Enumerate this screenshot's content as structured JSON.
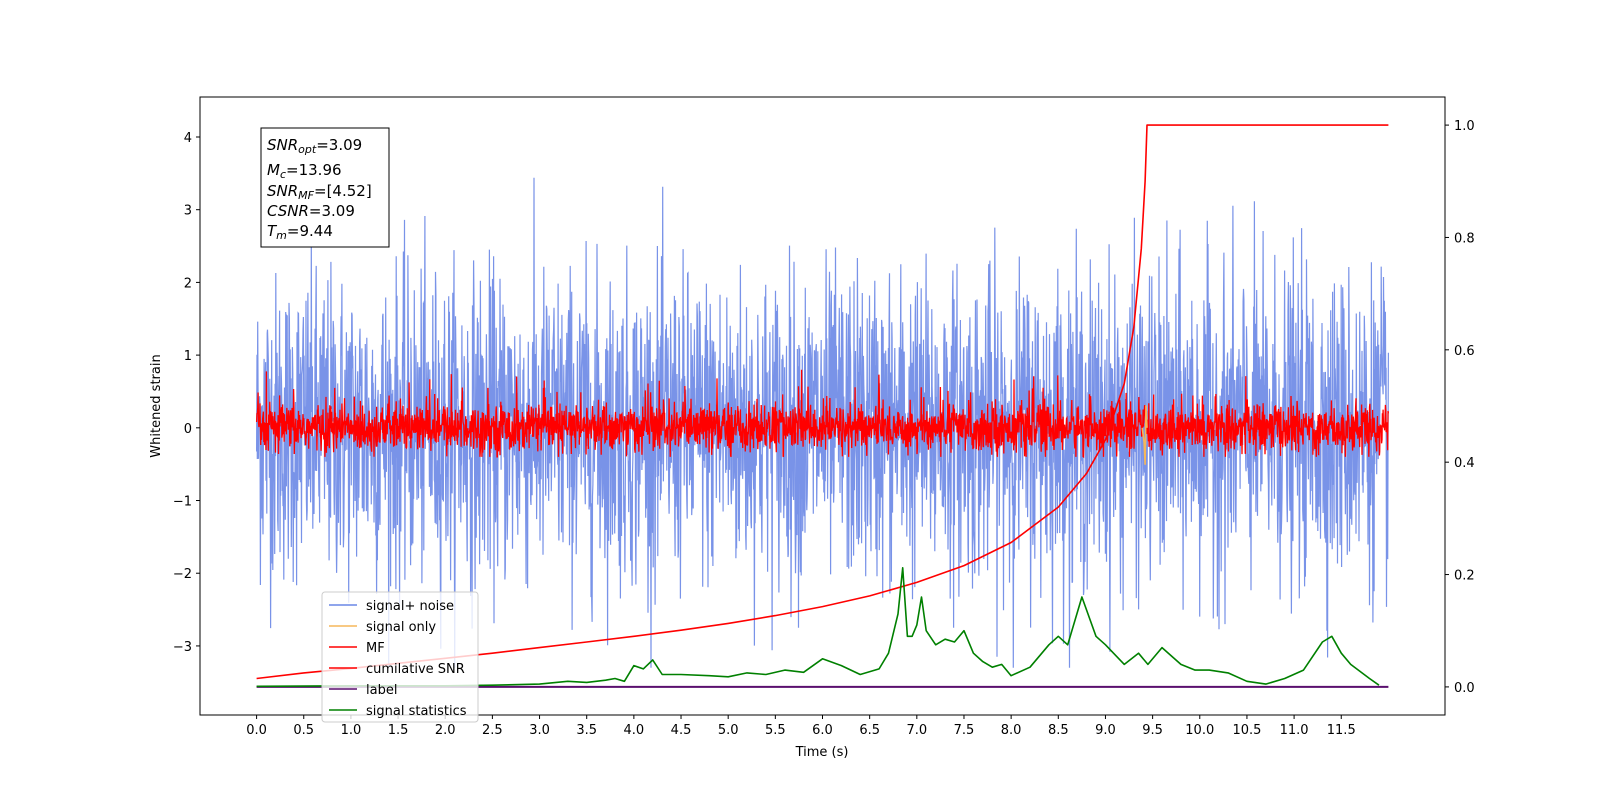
{
  "chart_data": {
    "type": "line",
    "xlabel": "Time (s)",
    "ylabel": "Whitened strain",
    "xlim": [
      -0.6,
      12.6
    ],
    "ylim": [
      -3.95,
      4.55
    ],
    "y2lim": [
      -0.05,
      1.05
    ],
    "x_ticks": [
      "0.0",
      "0.5",
      "1.0",
      "1.5",
      "2.0",
      "2.5",
      "3.0",
      "3.5",
      "4.0",
      "4.5",
      "5.0",
      "5.5",
      "6.0",
      "6.5",
      "7.0",
      "7.5",
      "8.0",
      "8.5",
      "9.0",
      "9.5",
      "10.0",
      "10.5",
      "11.0",
      "11.5"
    ],
    "y_ticks": [
      "−3",
      "−2",
      "−1",
      "0",
      "1",
      "2",
      "3",
      "4"
    ],
    "y2_ticks": [
      "0.0",
      "0.2",
      "0.4",
      "0.6",
      "0.8",
      "1.0"
    ],
    "annotation": {
      "snr_opt": {
        "sym": "SNR",
        "sub": "opt",
        "val": "=3.09"
      },
      "mc": {
        "sym": "M",
        "sub": "c",
        "val": "=13.96"
      },
      "snr_mf": {
        "sym": "SNR",
        "sub": "MF",
        "val": "=[4.52]"
      },
      "csnr": {
        "sym": "CSNR",
        "sub": "",
        "val": "=3.09"
      },
      "tm": {
        "sym": "T",
        "sub": "m",
        "val": "=9.44"
      }
    },
    "legend": {
      "placement": "lower-left",
      "entries": [
        {
          "label": "signal+ noise",
          "color": "#6a87e6"
        },
        {
          "label": "signal only",
          "color": "#f5b75a"
        },
        {
          "label": "MF",
          "color": "#ff0000"
        },
        {
          "label": "cumilative SNR",
          "color": "#ff0000"
        },
        {
          "label": "label",
          "color": "#5a0f6e"
        },
        {
          "label": "signal statistics",
          "color": "#008000"
        }
      ]
    },
    "series": [
      {
        "name": "signal+ noise",
        "color": "#6a87e6",
        "description": "whitened strain noise",
        "t_range": [
          0,
          12
        ],
        "amplitude_range": [
          -3.3,
          4.2
        ]
      },
      {
        "name": "MF",
        "color": "#ff0000",
        "t_range": [
          0,
          12
        ],
        "amplitude_range": [
          -0.4,
          1.0
        ]
      },
      {
        "name": "signal only",
        "color": "#f5b75a",
        "t": [
          9.39,
          9.41,
          9.42,
          9.43,
          9.44
        ],
        "y": [
          0,
          -0.2,
          -0.5,
          0.3,
          0
        ]
      },
      {
        "name": "cumilative SNR",
        "axis": "right",
        "color": "#ff0000",
        "t": [
          0.0,
          0.5,
          1.0,
          1.5,
          2.0,
          2.5,
          3.0,
          3.5,
          4.0,
          4.5,
          5.0,
          5.5,
          6.0,
          6.5,
          7.0,
          7.5,
          8.0,
          8.5,
          8.8,
          9.0,
          9.2,
          9.3,
          9.38,
          9.42,
          9.44,
          12.0
        ],
        "values": [
          0.015,
          0.025,
          0.033,
          0.042,
          0.051,
          0.06,
          0.07,
          0.08,
          0.09,
          0.101,
          0.113,
          0.127,
          0.143,
          0.162,
          0.186,
          0.216,
          0.257,
          0.32,
          0.38,
          0.44,
          0.54,
          0.64,
          0.78,
          0.9,
          1.0,
          1.0
        ]
      },
      {
        "name": "label",
        "axis": "right",
        "color": "#5a0f6e",
        "t": [
          0,
          12
        ],
        "values": [
          0.0,
          0.0
        ]
      },
      {
        "name": "signal statistics",
        "axis": "right",
        "color": "#008000",
        "t": [
          0.0,
          1.0,
          2.0,
          2.5,
          3.0,
          3.3,
          3.5,
          3.7,
          3.8,
          3.9,
          4.0,
          4.1,
          4.2,
          4.3,
          4.5,
          4.8,
          5.0,
          5.2,
          5.4,
          5.6,
          5.8,
          6.0,
          6.2,
          6.4,
          6.6,
          6.7,
          6.8,
          6.85,
          6.9,
          6.95,
          7.0,
          7.05,
          7.1,
          7.2,
          7.3,
          7.4,
          7.5,
          7.6,
          7.7,
          7.8,
          7.9,
          8.0,
          8.2,
          8.4,
          8.5,
          8.6,
          8.75,
          8.9,
          9.0,
          9.2,
          9.35,
          9.45,
          9.6,
          9.8,
          9.95,
          10.1,
          10.3,
          10.5,
          10.7,
          10.9,
          11.1,
          11.3,
          11.4,
          11.5,
          11.6,
          11.8,
          11.9
        ],
        "values": [
          0.001,
          0.002,
          0.002,
          0.003,
          0.005,
          0.01,
          0.008,
          0.012,
          0.015,
          0.01,
          0.038,
          0.032,
          0.048,
          0.022,
          0.022,
          0.02,
          0.018,
          0.025,
          0.022,
          0.03,
          0.026,
          0.05,
          0.038,
          0.022,
          0.032,
          0.06,
          0.13,
          0.212,
          0.09,
          0.09,
          0.11,
          0.16,
          0.1,
          0.075,
          0.085,
          0.08,
          0.1,
          0.06,
          0.045,
          0.035,
          0.04,
          0.02,
          0.035,
          0.075,
          0.09,
          0.075,
          0.16,
          0.09,
          0.075,
          0.04,
          0.06,
          0.04,
          0.07,
          0.04,
          0.03,
          0.03,
          0.025,
          0.01,
          0.005,
          0.015,
          0.03,
          0.08,
          0.09,
          0.06,
          0.04,
          0.015,
          0.003
        ]
      }
    ]
  }
}
